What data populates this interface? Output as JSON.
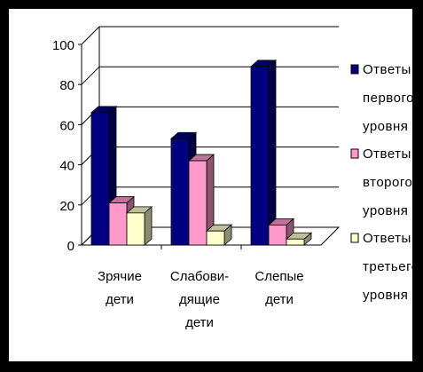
{
  "chart_data": {
    "type": "bar",
    "style": "3d-clustered-column",
    "categories": [
      [
        "Зрячие",
        "дети"
      ],
      [
        "Слабови-",
        "дящие",
        "дети"
      ],
      [
        "Слепые",
        "дети"
      ]
    ],
    "y_ticks": [
      "0",
      "20",
      "40",
      "60",
      "80",
      "100"
    ],
    "ylim": [
      0,
      100
    ],
    "grid": true,
    "legend_position": "right",
    "series": [
      {
        "name": [
          "Ответы",
          "первого",
          "уровня"
        ],
        "color": "#000080",
        "values": [
          66,
          53,
          89
        ]
      },
      {
        "name": [
          "Ответы",
          "второго",
          "уровня"
        ],
        "color": "#FF99CC",
        "values": [
          21,
          42,
          10
        ]
      },
      {
        "name": [
          "Ответы",
          "третьего",
          "уровня"
        ],
        "color": "#FFFFCC",
        "values": [
          16,
          7,
          3
        ]
      }
    ]
  }
}
